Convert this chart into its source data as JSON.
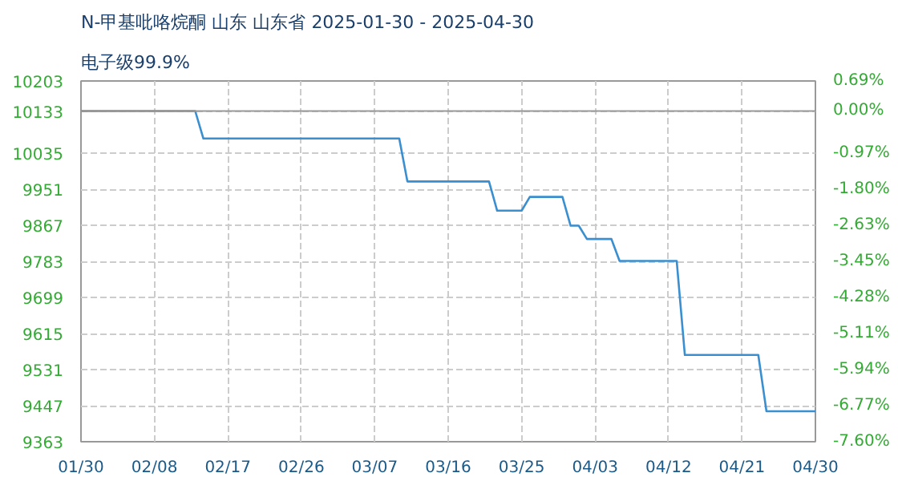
{
  "chart_data": {
    "type": "line",
    "title": "N-甲基吡咯烷酮 山东 山东省 2025-01-30 - 2025-04-30",
    "subtitle": "电子级99.9%",
    "x": [
      "2025-01-30",
      "2025-02-13",
      "2025-02-14",
      "2025-03-10",
      "2025-03-11",
      "2025-03-21",
      "2025-03-22",
      "2025-03-25",
      "2025-03-26",
      "2025-03-30",
      "2025-03-31",
      "2025-04-01",
      "2025-04-02",
      "2025-04-05",
      "2025-04-06",
      "2025-04-13",
      "2025-04-14",
      "2025-04-23",
      "2025-04-24",
      "2025-04-30"
    ],
    "series": [
      {
        "color": "#3a8fd0",
        "values": [
          10133,
          10133,
          10069,
          10069,
          9969,
          9969,
          9901,
          9901,
          9933,
          9933,
          9866,
          9866,
          9835,
          9835,
          9784,
          9784,
          9565,
          9565,
          9434,
          9434
        ]
      }
    ],
    "xlim": [
      "2025-01-30",
      "2025-04-30"
    ],
    "xticks": [
      {
        "value": "2025-01-30",
        "label": "01/30"
      },
      {
        "value": "2025-02-08",
        "label": "02/08"
      },
      {
        "value": "2025-02-17",
        "label": "02/17"
      },
      {
        "value": "2025-02-26",
        "label": "02/26"
      },
      {
        "value": "2025-03-07",
        "label": "03/07"
      },
      {
        "value": "2025-03-16",
        "label": "03/16"
      },
      {
        "value": "2025-03-25",
        "label": "03/25"
      },
      {
        "value": "2025-04-03",
        "label": "04/03"
      },
      {
        "value": "2025-04-12",
        "label": "04/12"
      },
      {
        "value": "2025-04-21",
        "label": "04/21"
      },
      {
        "value": "2025-04-30",
        "label": "04/30"
      }
    ],
    "ylim": [
      9363,
      10203
    ],
    "yticks": [
      9363,
      9447,
      9531,
      9615,
      9699,
      9783,
      9867,
      9951,
      10035,
      10133,
      10203
    ],
    "y2lim": [
      -7.6,
      0.69
    ],
    "y2ticks": [
      {
        "value": -7.6,
        "label": "-7.60%"
      },
      {
        "value": -6.77,
        "label": "-6.77%"
      },
      {
        "value": -5.94,
        "label": "-5.94%"
      },
      {
        "value": -5.11,
        "label": "-5.11%"
      },
      {
        "value": -4.28,
        "label": "-4.28%"
      },
      {
        "value": -3.45,
        "label": "-3.45%"
      },
      {
        "value": -2.63,
        "label": "-2.63%"
      },
      {
        "value": -1.8,
        "label": "-1.80%"
      },
      {
        "value": -0.97,
        "label": "-0.97%"
      },
      {
        "value": 0.0,
        "label": "0.00%"
      },
      {
        "value": 0.69,
        "label": "0.69%"
      }
    ],
    "ref_lines": [
      {
        "axis": "y",
        "value": 10133,
        "color": "#999999"
      }
    ],
    "grid": true,
    "line_style": "solid",
    "marker": "none"
  }
}
